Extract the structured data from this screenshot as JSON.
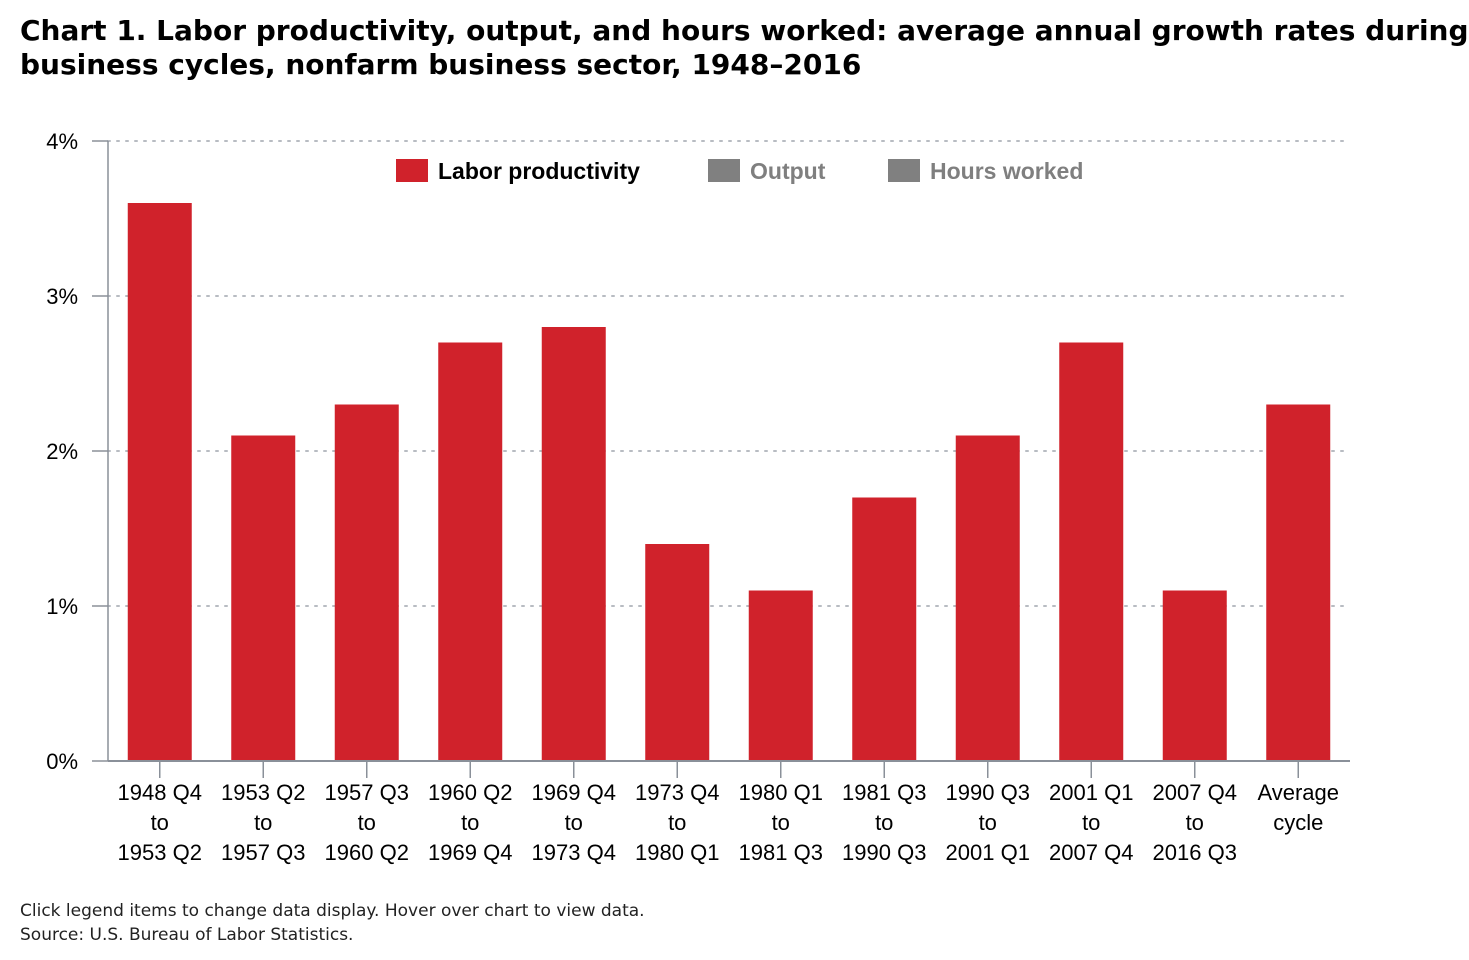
{
  "title_lines": [
    "Chart 1. Labor productivity, output, and hours worked: average annual growth rates during",
    "business cycles, nonfarm business sector, 1948–2016"
  ],
  "footer": {
    "note": "Click legend items to change data display. Hover over chart to view data.",
    "source": "Source: U.S. Bureau of Labor Statistics."
  },
  "legend": [
    {
      "label": "Labor productivity",
      "color": "#d0222b",
      "active": true
    },
    {
      "label": "Output",
      "color": "#808080",
      "active": false
    },
    {
      "label": "Hours worked",
      "color": "#808080",
      "active": false
    }
  ],
  "chart_data": {
    "type": "bar",
    "title": "Chart 1. Labor productivity, output, and hours worked: average annual growth rates during business cycles, nonfarm business sector, 1948–2016",
    "categories": [
      [
        "1948 Q4",
        "to",
        "1953 Q2"
      ],
      [
        "1953 Q2",
        "to",
        "1957 Q3"
      ],
      [
        "1957 Q3",
        "to",
        "1960 Q2"
      ],
      [
        "1960 Q2",
        "to",
        "1969 Q4"
      ],
      [
        "1969 Q4",
        "to",
        "1973 Q4"
      ],
      [
        "1973 Q4",
        "to",
        "1980 Q1"
      ],
      [
        "1980 Q1",
        "to",
        "1981 Q3"
      ],
      [
        "1981 Q3",
        "to",
        "1990 Q3"
      ],
      [
        "1990 Q3",
        "to",
        "2001 Q1"
      ],
      [
        "2001 Q1",
        "to",
        "2007 Q4"
      ],
      [
        "2007 Q4",
        "to",
        "2016 Q3"
      ],
      [
        "Average",
        "cycle"
      ]
    ],
    "series": [
      {
        "name": "Labor productivity",
        "color": "#d0222b",
        "values": [
          3.6,
          2.1,
          2.3,
          2.7,
          2.8,
          1.4,
          1.1,
          1.7,
          2.1,
          2.7,
          1.1,
          2.3
        ]
      }
    ],
    "ylim": [
      0,
      4
    ],
    "yticks": [
      0,
      1,
      2,
      3,
      4
    ],
    "ytick_labels": [
      "0%",
      "1%",
      "2%",
      "3%",
      "4%"
    ],
    "grid": "horizontal dotted",
    "legend_position": "top-center"
  }
}
